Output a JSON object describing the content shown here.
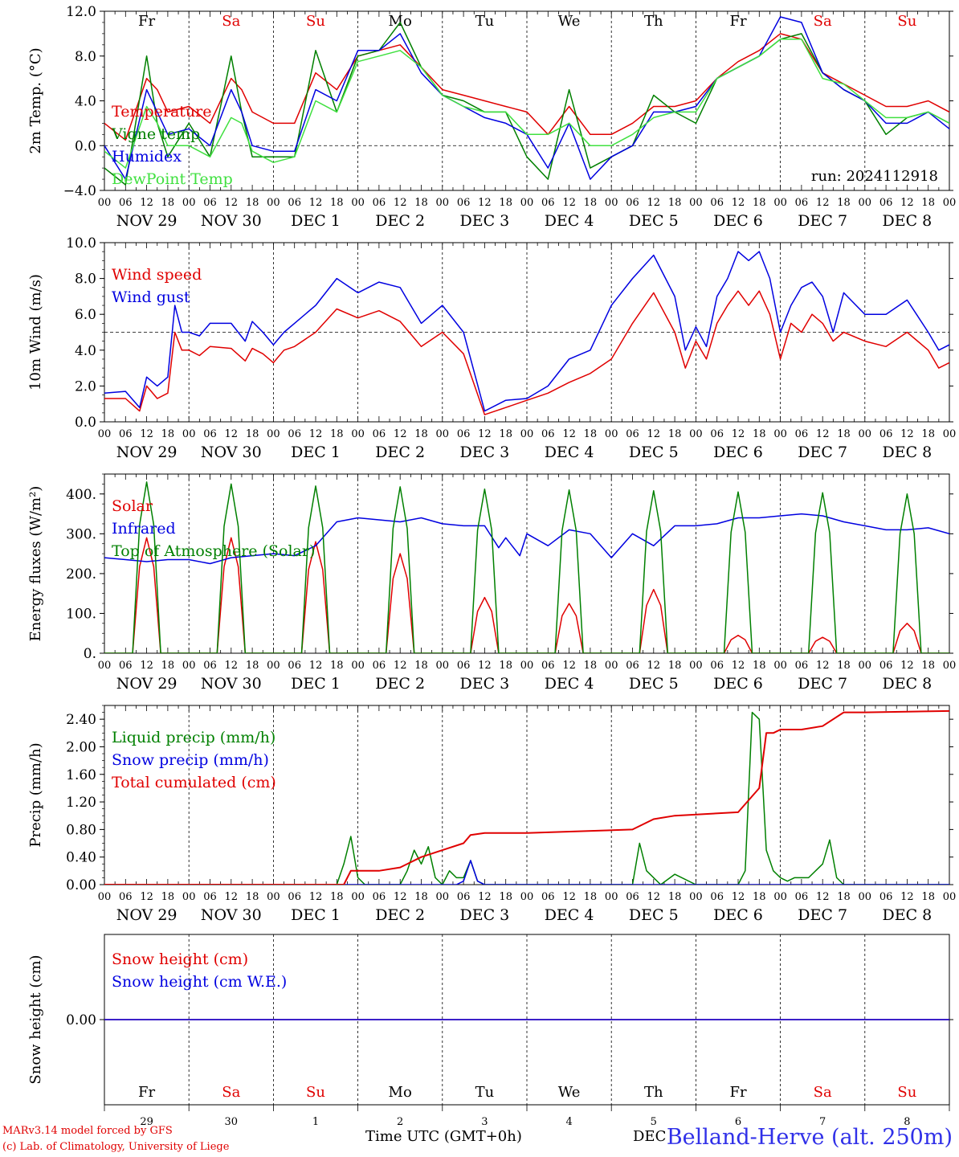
{
  "footer": {
    "model_line": "MARv3.14 model forced by GFS",
    "copyright_line": "(c) Lab. of Climatology, University of Liege",
    "xaxis_title": "Time UTC (GMT+0h)",
    "station": "Belland-Herve (alt. 250m)",
    "day_overlap": "DEC"
  },
  "colors": {
    "red": "#e00000",
    "green": "#008000",
    "blue": "#0000e0",
    "light_green": "#40e040",
    "axis": "#000000"
  },
  "common": {
    "hour_ticks": [
      "00",
      "06",
      "12",
      "18"
    ],
    "date_labels": [
      "NOV 29",
      "NOV 30",
      "DEC  1",
      "DEC  2",
      "DEC  3",
      "DEC  4",
      "DEC  5",
      "DEC  6",
      "DEC  7",
      "DEC  8"
    ],
    "weekdays": [
      {
        "label": "Fr",
        "color": "#000000"
      },
      {
        "label": "Sa",
        "color": "#e00000"
      },
      {
        "label": "Su",
        "color": "#e00000"
      },
      {
        "label": "Mo",
        "color": "#000000"
      },
      {
        "label": "Tu",
        "color": "#000000"
      },
      {
        "label": "We",
        "color": "#000000"
      },
      {
        "label": "Th",
        "color": "#000000"
      },
      {
        "label": "Fr",
        "color": "#000000"
      },
      {
        "label": "Sa",
        "color": "#e00000"
      },
      {
        "label": "Su",
        "color": "#e00000"
      }
    ],
    "day_numbers": [
      "29",
      "30",
      "1",
      "2",
      "3",
      "4",
      "5",
      "6",
      "7",
      "8"
    ]
  },
  "chart_data": [
    {
      "type": "line",
      "ylabel": "2m Temp. (°C)",
      "ylim": [
        -4,
        12
      ],
      "yticks": [
        "12.0",
        "8.0",
        "4.0",
        "0.0",
        "−4.0"
      ],
      "ytick_values": [
        12,
        8,
        4,
        0,
        -4
      ],
      "ref_line": 0,
      "annotation": "run: 2024112918",
      "x_unit": "hours since NOV 29 00 UTC",
      "series": [
        {
          "name": "Temperature",
          "color": "#e00000",
          "x": [
            0,
            6,
            12,
            15,
            18,
            24,
            30,
            36,
            39,
            42,
            48,
            54,
            60,
            66,
            72,
            78,
            84,
            90,
            96,
            102,
            108,
            114,
            120,
            126,
            132,
            138,
            144,
            150,
            156,
            162,
            168,
            174,
            180,
            186,
            192,
            198,
            204,
            210,
            216,
            222,
            228,
            234,
            240
          ],
          "y": [
            2,
            0.5,
            6,
            5,
            3,
            3.5,
            2,
            6,
            5,
            3,
            2,
            2,
            6.5,
            5,
            8,
            8.5,
            9,
            7,
            5,
            4.5,
            4,
            3.5,
            3,
            1,
            3.5,
            1,
            1,
            2,
            3.5,
            3.5,
            4,
            6,
            7.5,
            8.5,
            10,
            9.5,
            6.5,
            5.5,
            4.5,
            3.5,
            3.5,
            4,
            3
          ]
        },
        {
          "name": "Vigne temp",
          "color": "#008000",
          "x": [
            0,
            6,
            12,
            15,
            18,
            24,
            30,
            36,
            39,
            42,
            48,
            54,
            60,
            66,
            72,
            78,
            84,
            90,
            96,
            102,
            108,
            114,
            120,
            126,
            132,
            138,
            144,
            150,
            156,
            162,
            168,
            174,
            180,
            186,
            192,
            198,
            204,
            210,
            216,
            222,
            228,
            234,
            240
          ],
          "y": [
            -2,
            -3.5,
            8,
            2,
            -1,
            2,
            -1,
            8,
            3,
            -1,
            -1,
            -1,
            8.5,
            3,
            8,
            8.5,
            11,
            7,
            4.5,
            4,
            3,
            3,
            -1,
            -3,
            5,
            -2,
            -1,
            0,
            4.5,
            3,
            2,
            6,
            7,
            8,
            9.5,
            10,
            6.5,
            5,
            4,
            1,
            2.5,
            3,
            2
          ]
        },
        {
          "name": "Humidex",
          "color": "#0000e0",
          "x": [
            0,
            6,
            12,
            15,
            18,
            24,
            30,
            36,
            39,
            42,
            48,
            54,
            60,
            66,
            72,
            78,
            84,
            90,
            96,
            102,
            108,
            114,
            120,
            126,
            132,
            138,
            144,
            150,
            156,
            162,
            168,
            174,
            180,
            186,
            192,
            198,
            204,
            210,
            216,
            222,
            228,
            234,
            240
          ],
          "y": [
            0,
            -3,
            5,
            3,
            1,
            1.5,
            0,
            5,
            3,
            0,
            -0.5,
            -0.5,
            5,
            4,
            8.5,
            8.5,
            10,
            6.5,
            4.5,
            3.5,
            2.5,
            2,
            1,
            -2,
            2,
            -3,
            -1,
            0,
            3,
            3,
            3.5,
            6,
            7,
            8,
            11.5,
            11,
            6.5,
            5,
            4,
            2,
            2,
            3,
            1.5
          ]
        },
        {
          "name": "DewPoint Temp",
          "color": "#40e040",
          "x": [
            0,
            6,
            12,
            15,
            18,
            24,
            30,
            36,
            39,
            42,
            48,
            54,
            60,
            66,
            72,
            78,
            84,
            90,
            96,
            102,
            108,
            114,
            120,
            126,
            132,
            138,
            144,
            150,
            156,
            162,
            168,
            174,
            180,
            186,
            192,
            198,
            204,
            210,
            216,
            222,
            228,
            234,
            240
          ],
          "y": [
            -0.5,
            -2,
            3.5,
            2,
            0,
            0,
            -1,
            2.5,
            2,
            -0.5,
            -1.5,
            -1,
            4,
            3,
            7.5,
            8,
            8.5,
            7,
            4.5,
            3.5,
            3,
            3,
            1,
            1,
            2,
            0,
            0,
            1,
            2.5,
            3,
            3,
            6,
            7,
            8,
            9.5,
            9.5,
            6,
            5.5,
            4,
            2.5,
            2.5,
            3,
            2
          ]
        }
      ]
    },
    {
      "type": "line",
      "ylabel": "10m Wind (m/s)",
      "ylim": [
        0,
        10
      ],
      "yticks": [
        "10.0",
        "8.0",
        "6.0",
        "4.0",
        "2.0",
        "0.0"
      ],
      "ytick_values": [
        10,
        8,
        6,
        4,
        2,
        0
      ],
      "ref_line": 5,
      "x_unit": "hours since NOV 29 00 UTC",
      "series": [
        {
          "name": "Wind speed",
          "color": "#e00000",
          "x": [
            0,
            6,
            10,
            12,
            15,
            18,
            20,
            22,
            24,
            27,
            30,
            36,
            40,
            42,
            45,
            48,
            51,
            54,
            60,
            66,
            72,
            78,
            84,
            90,
            96,
            102,
            108,
            114,
            120,
            126,
            132,
            138,
            144,
            150,
            156,
            162,
            165,
            168,
            171,
            174,
            177,
            180,
            183,
            186,
            189,
            192,
            195,
            198,
            201,
            204,
            207,
            210,
            216,
            222,
            228,
            234,
            237,
            240
          ],
          "y": [
            1.3,
            1.3,
            0.6,
            2,
            1.3,
            1.6,
            5,
            4,
            4,
            3.7,
            4.2,
            4.1,
            3.4,
            4.1,
            3.8,
            3.3,
            4,
            4.2,
            5,
            6.3,
            5.8,
            6.2,
            5.6,
            4.2,
            5,
            3.8,
            0.4,
            0.8,
            1.2,
            1.6,
            2.2,
            2.7,
            3.5,
            5.5,
            7.2,
            5,
            3,
            4.5,
            3.5,
            5.5,
            6.5,
            7.3,
            6.5,
            7.3,
            6,
            3.5,
            5.5,
            5,
            6,
            5.5,
            4.5,
            5,
            4.5,
            4.2,
            5,
            4,
            3,
            3.3
          ]
        },
        {
          "name": "Wind gust",
          "color": "#0000e0",
          "x": [
            0,
            6,
            10,
            12,
            15,
            18,
            20,
            22,
            24,
            27,
            30,
            36,
            40,
            42,
            45,
            48,
            51,
            54,
            60,
            66,
            72,
            78,
            84,
            90,
            96,
            102,
            108,
            114,
            120,
            126,
            132,
            138,
            144,
            150,
            156,
            162,
            165,
            168,
            171,
            174,
            177,
            180,
            183,
            186,
            189,
            192,
            195,
            198,
            201,
            204,
            207,
            210,
            216,
            222,
            228,
            234,
            237,
            240
          ],
          "y": [
            1.6,
            1.7,
            0.8,
            2.5,
            2,
            2.5,
            6.5,
            5,
            5,
            4.8,
            5.5,
            5.5,
            4.5,
            5.6,
            5,
            4.3,
            5,
            5.5,
            6.5,
            8,
            7.2,
            7.8,
            7.5,
            5.5,
            6.5,
            5,
            0.6,
            1.2,
            1.3,
            2,
            3.5,
            4,
            6.5,
            8,
            9.3,
            7,
            4,
            5.3,
            4.2,
            7,
            8,
            9.5,
            9,
            9.5,
            8,
            5,
            6.5,
            7.5,
            7.8,
            7,
            5,
            7.2,
            6,
            6,
            6.8,
            5,
            4,
            4.3
          ]
        }
      ]
    },
    {
      "type": "line",
      "ylabel": "Energy fluxes (W/m²)",
      "ylim": [
        0,
        450
      ],
      "yticks": [
        "400.",
        "300.",
        "200.",
        "100.",
        "0."
      ],
      "ytick_values": [
        400,
        300,
        200,
        100,
        0
      ],
      "x_unit": "hours since NOV 29 00 UTC",
      "series": [
        {
          "name": "Solar",
          "color": "#e00000",
          "day_peaks": [
            290,
            290,
            280,
            250,
            140,
            125,
            160,
            45,
            40,
            75
          ],
          "sunrise_hour": 8,
          "sunset_hour": 16
        },
        {
          "name": "Infrared",
          "color": "#0000e0",
          "x": [
            0,
            6,
            12,
            18,
            24,
            30,
            36,
            42,
            48,
            54,
            60,
            66,
            72,
            78,
            84,
            90,
            96,
            102,
            108,
            112,
            114,
            118,
            120,
            126,
            132,
            138,
            144,
            150,
            156,
            162,
            168,
            174,
            180,
            186,
            192,
            198,
            204,
            210,
            216,
            222,
            228,
            234,
            240
          ],
          "y": [
            240,
            235,
            230,
            235,
            235,
            225,
            240,
            245,
            250,
            245,
            270,
            330,
            340,
            335,
            330,
            340,
            325,
            320,
            320,
            265,
            290,
            245,
            300,
            270,
            310,
            300,
            240,
            300,
            270,
            320,
            320,
            325,
            340,
            340,
            345,
            350,
            345,
            330,
            320,
            310,
            310,
            315,
            300
          ]
        },
        {
          "name": "Top of Atmosphere (Solar)",
          "color": "#008000",
          "day_peaks": [
            430,
            425,
            420,
            418,
            412,
            410,
            408,
            405,
            403,
            400
          ],
          "sunrise_hour": 8,
          "sunset_hour": 16
        }
      ]
    },
    {
      "type": "line",
      "ylabel": "Precip (mm/h)",
      "ylim": [
        0,
        2.6
      ],
      "yticks": [
        "2.40",
        "2.00",
        "1.60",
        "1.20",
        "0.80",
        "0.40",
        "0.00"
      ],
      "ytick_values": [
        2.4,
        2.0,
        1.6,
        1.2,
        0.8,
        0.4,
        0.0
      ],
      "x_unit": "hours since NOV 29 00 UTC",
      "series": [
        {
          "name": "Liquid precip (mm/h)",
          "color": "#008000",
          "x": [
            0,
            66,
            68,
            70,
            72,
            74,
            76,
            84,
            86,
            88,
            90,
            92,
            94,
            96,
            98,
            100,
            102,
            104,
            106,
            108,
            110,
            120,
            150,
            152,
            154,
            158,
            162,
            168,
            180,
            182,
            184,
            186,
            188,
            190,
            192,
            194,
            196,
            200,
            204,
            206,
            208,
            210,
            212,
            214,
            216,
            240
          ],
          "y": [
            0,
            0,
            0.3,
            0.7,
            0.1,
            0,
            0,
            0,
            0.2,
            0.5,
            0.3,
            0.55,
            0.1,
            0,
            0.2,
            0.1,
            0.1,
            0.35,
            0.05,
            0,
            0,
            0,
            0,
            0.6,
            0.2,
            0,
            0.15,
            0,
            0,
            0.2,
            2.5,
            2.4,
            0.5,
            0.2,
            0.1,
            0.05,
            0.1,
            0.1,
            0.3,
            0.65,
            0.1,
            0,
            0,
            0,
            0,
            0
          ]
        },
        {
          "name": "Snow precip (mm/h)",
          "color": "#0000e0",
          "x": [
            0,
            100,
            102,
            104,
            106,
            108,
            110,
            240
          ],
          "y": [
            0,
            0,
            0.05,
            0.35,
            0.05,
            0,
            0,
            0
          ]
        },
        {
          "name": "Total cumulated (cm)",
          "color": "#e00000",
          "x": [
            0,
            68,
            70,
            78,
            84,
            90,
            96,
            102,
            104,
            108,
            120,
            150,
            156,
            162,
            180,
            186,
            188,
            190,
            192,
            198,
            204,
            210,
            216,
            240
          ],
          "y": [
            0,
            0,
            0.2,
            0.2,
            0.25,
            0.4,
            0.5,
            0.6,
            0.72,
            0.75,
            0.75,
            0.8,
            0.95,
            1.0,
            1.05,
            1.4,
            2.2,
            2.2,
            2.25,
            2.25,
            2.3,
            2.5,
            2.5,
            2.52
          ]
        }
      ]
    },
    {
      "type": "line",
      "ylabel": "Snow height (cm)",
      "ylim": [
        -1,
        1
      ],
      "yticks": [
        "0.00"
      ],
      "ytick_values": [
        0
      ],
      "x_unit": "hours since NOV 29 00 UTC",
      "series": [
        {
          "name": "Snow height (cm)",
          "color": "#e00000",
          "x": [
            0,
            240
          ],
          "y": [
            0,
            0
          ]
        },
        {
          "name": "Snow height (cm W.E.)",
          "color": "#0000e0",
          "x": [
            0,
            240
          ],
          "y": [
            0,
            0
          ]
        }
      ]
    }
  ]
}
